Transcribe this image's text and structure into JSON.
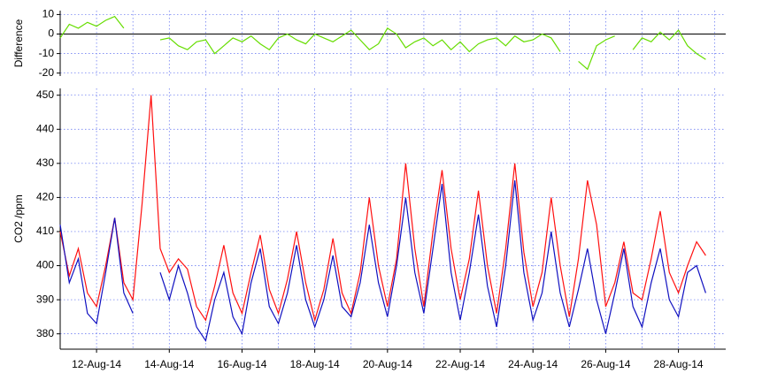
{
  "chart_data": [
    {
      "type": "line",
      "ylabel": "Difference",
      "x": [
        11,
        11.25,
        11.5,
        11.75,
        12,
        12.25,
        12.5,
        12.75,
        13,
        13.25,
        13.5,
        13.75,
        14,
        14.25,
        14.5,
        14.75,
        15,
        15.25,
        15.5,
        15.75,
        16,
        16.25,
        16.5,
        16.75,
        17,
        17.25,
        17.5,
        17.75,
        18,
        18.25,
        18.5,
        18.75,
        19,
        19.25,
        19.5,
        19.75,
        20,
        20.25,
        20.5,
        20.75,
        21,
        21.25,
        21.5,
        21.75,
        22,
        22.25,
        22.5,
        22.75,
        23,
        23.25,
        23.5,
        23.75,
        24,
        24.25,
        24.5,
        24.75,
        25,
        25.25,
        25.5,
        25.75,
        26,
        26.25,
        26.5,
        26.75,
        27,
        27.25,
        27.5,
        27.75,
        28,
        28.25,
        28.5,
        28.75
      ],
      "series": [
        {
          "color": "#66dd00",
          "values": [
            -2,
            5,
            3,
            6,
            4,
            7,
            9,
            3,
            null,
            null,
            null,
            -3,
            -2,
            -6,
            -8,
            -4,
            -3,
            -10,
            -6,
            -2,
            -4,
            -1,
            -5,
            -8,
            -2,
            0,
            -3,
            -5,
            0,
            -2,
            -4,
            -1,
            2,
            -3,
            -8,
            -5,
            3,
            0,
            -7,
            -4,
            -2,
            -6,
            -3,
            -8,
            -4,
            -9,
            -5,
            -3,
            -2,
            -6,
            -1,
            -4,
            -3,
            0,
            -2,
            -9,
            null,
            -14,
            -18,
            -6,
            -3,
            -1,
            null,
            -8,
            -2,
            -4,
            1,
            -3,
            2,
            -6,
            -10,
            -13
          ]
        }
      ],
      "xlim": [
        11,
        29.3
      ],
      "xgrid": [
        11,
        12,
        13,
        14,
        15,
        16,
        17,
        18,
        19,
        20,
        21,
        22,
        23,
        24,
        25,
        26,
        27,
        28,
        29
      ],
      "ylim": [
        -21.5,
        12
      ],
      "yticks": [
        10,
        0,
        -10,
        -20
      ],
      "zero_line": true
    },
    {
      "type": "line",
      "ylabel": "CO2 /ppm",
      "x": [
        11,
        11.25,
        11.5,
        11.75,
        12,
        12.25,
        12.5,
        12.75,
        13,
        13.25,
        13.5,
        13.75,
        14,
        14.25,
        14.5,
        14.75,
        15,
        15.25,
        15.5,
        15.75,
        16,
        16.25,
        16.5,
        16.75,
        17,
        17.25,
        17.5,
        17.75,
        18,
        18.25,
        18.5,
        18.75,
        19,
        19.25,
        19.5,
        19.75,
        20,
        20.25,
        20.5,
        20.75,
        21,
        21.25,
        21.5,
        21.75,
        22,
        22.25,
        22.5,
        22.75,
        23,
        23.25,
        23.5,
        23.75,
        24,
        24.25,
        24.5,
        24.75,
        25,
        25.25,
        25.5,
        25.75,
        26,
        26.25,
        26.5,
        26.75,
        27,
        27.25,
        27.5,
        27.75,
        28,
        28.25,
        28.5,
        28.75
      ],
      "series": [
        {
          "color": "#ff1010",
          "values": [
            410,
            397,
            405,
            392,
            388,
            400,
            414,
            395,
            390,
            418,
            450,
            405,
            398,
            402,
            399,
            388,
            384,
            394,
            406,
            392,
            386,
            398,
            409,
            393,
            386,
            396,
            410,
            395,
            384,
            393,
            408,
            392,
            386,
            398,
            420,
            400,
            388,
            402,
            430,
            405,
            388,
            410,
            428,
            405,
            390,
            402,
            422,
            400,
            386,
            405,
            430,
            404,
            388,
            398,
            420,
            400,
            385,
            402,
            425,
            412,
            388,
            395,
            407,
            392,
            390,
            402,
            416,
            398,
            392,
            400,
            407,
            403
          ]
        },
        {
          "color": "#1010c0",
          "values": [
            412,
            395,
            402,
            386,
            383,
            398,
            414,
            392,
            386,
            null,
            null,
            398,
            390,
            400,
            392,
            382,
            378,
            390,
            398,
            385,
            380,
            395,
            405,
            388,
            383,
            392,
            406,
            390,
            382,
            390,
            403,
            388,
            385,
            395,
            412,
            395,
            385,
            400,
            420,
            398,
            386,
            405,
            424,
            398,
            384,
            398,
            415,
            394,
            382,
            400,
            425,
            398,
            384,
            392,
            410,
            392,
            382,
            393,
            405,
            390,
            380,
            392,
            405,
            388,
            382,
            395,
            405,
            390,
            385,
            398,
            400,
            392
          ]
        }
      ],
      "xlim": [
        11,
        29.3
      ],
      "xticks": [
        {
          "value": 12,
          "label": "12-Aug-14"
        },
        {
          "value": 14,
          "label": "14-Aug-14"
        },
        {
          "value": 16,
          "label": "16-Aug-14"
        },
        {
          "value": 18,
          "label": "18-Aug-14"
        },
        {
          "value": 20,
          "label": "20-Aug-14"
        },
        {
          "value": 22,
          "label": "22-Aug-14"
        },
        {
          "value": 24,
          "label": "24-Aug-14"
        },
        {
          "value": 26,
          "label": "26-Aug-14"
        },
        {
          "value": 28,
          "label": "28-Aug-14"
        }
      ],
      "xgrid": [
        11,
        12,
        13,
        14,
        15,
        16,
        17,
        18,
        19,
        20,
        21,
        22,
        23,
        24,
        25,
        26,
        27,
        28,
        29
      ],
      "ylim": [
        375.5,
        452
      ],
      "yticks": [
        450,
        440,
        430,
        420,
        410,
        400,
        390,
        380
      ]
    }
  ]
}
